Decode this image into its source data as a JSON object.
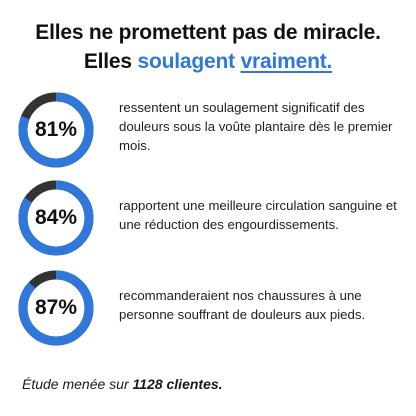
{
  "headline": {
    "line1": "Elles ne promettent pas de miracle.",
    "line2_prefix": "Elles ",
    "line2_accent1": "soulagent",
    "line2_space": " ",
    "line2_accent2": "vraiment."
  },
  "colors": {
    "accent": "#2f78d9",
    "ring_track": "#333333",
    "text": "#111111"
  },
  "stats": [
    {
      "percent_label": "81%",
      "percent": 81,
      "text": "ressentent un soulagement significatif des douleurs sous la voûte plantaire dès le premier mois."
    },
    {
      "percent_label": "84%",
      "percent": 84,
      "text": "rapportent une meilleure circulation sanguine et une réduction des engourdissements."
    },
    {
      "percent_label": "87%",
      "percent": 87,
      "text": "recommanderaient nos chaussures à une personne souffrant de douleurs aux pieds."
    }
  ],
  "footer": {
    "prefix": "Étude menée sur ",
    "bold": "1128 clientes."
  }
}
